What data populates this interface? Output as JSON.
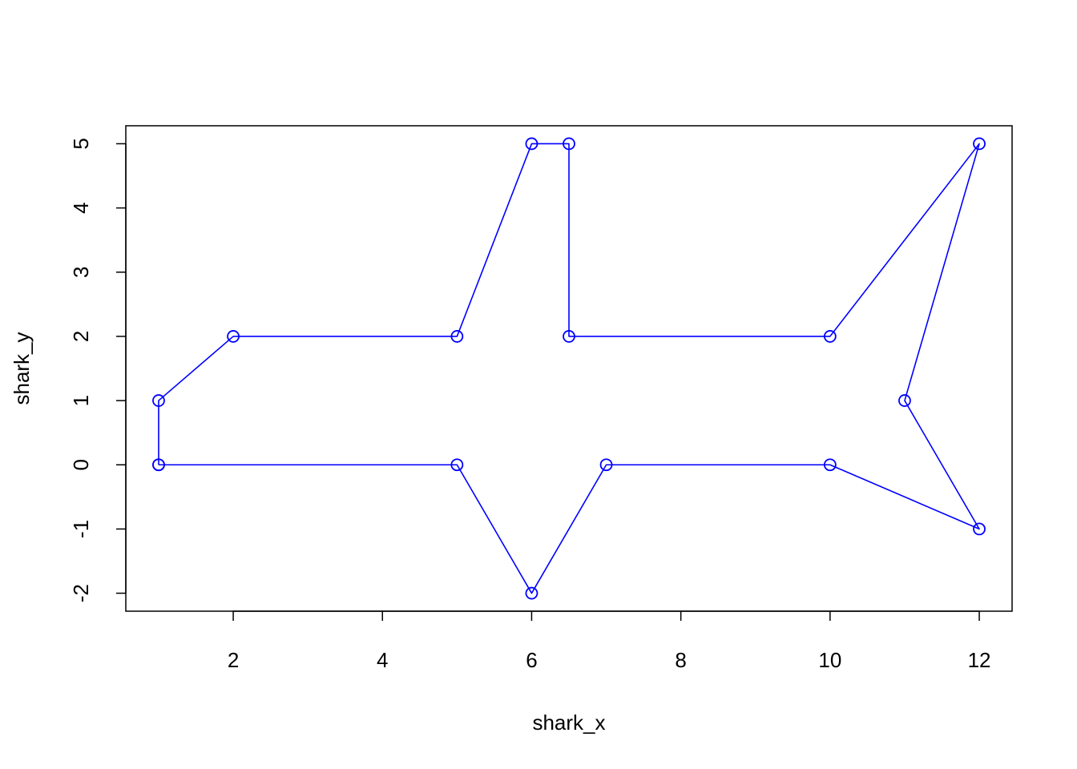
{
  "chart_data": {
    "type": "line",
    "xlabel": "shark_x",
    "ylabel": "shark_y",
    "xlim": [
      0.56,
      12.44
    ],
    "ylim": [
      -2.28,
      5.28
    ],
    "x_ticks": [
      2,
      4,
      6,
      8,
      10,
      12
    ],
    "y_ticks": [
      -2,
      -1,
      0,
      1,
      2,
      3,
      4,
      5
    ],
    "grid": false,
    "markers": "open-circle",
    "series": [
      {
        "color": "#0000ff",
        "x": [
          1,
          1,
          2,
          5,
          6,
          6.5,
          6.5,
          10,
          12,
          11,
          12,
          10,
          7,
          6,
          5,
          1
        ],
        "y": [
          0,
          1,
          2,
          2,
          5,
          5,
          2,
          2,
          5,
          1,
          -1,
          0,
          0,
          -2,
          0,
          0
        ]
      }
    ]
  }
}
